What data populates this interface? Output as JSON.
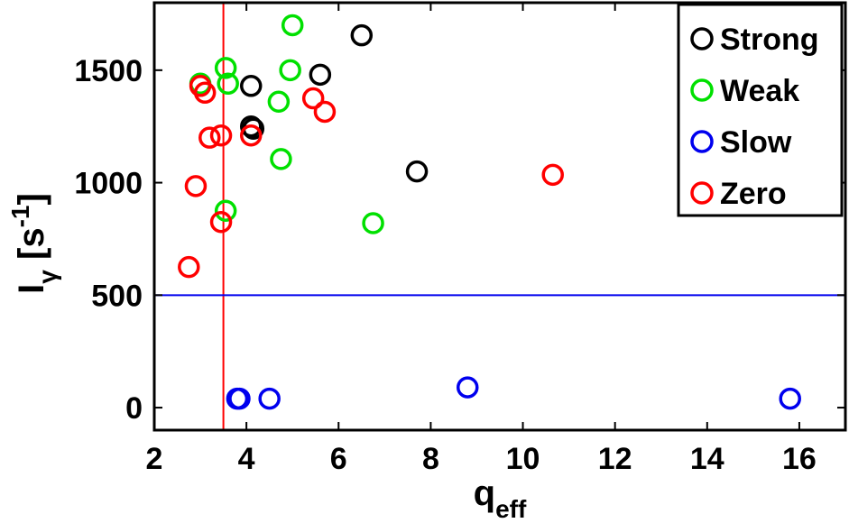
{
  "chart_data": {
    "type": "scatter",
    "xlabel": {
      "main": "q",
      "sub": "eff"
    },
    "ylabel": {
      "main": "I",
      "sub": "γ",
      "unit_open": " [s",
      "unit_sup": "-1",
      "unit_close": "]"
    },
    "xlim": [
      2,
      17
    ],
    "ylim": [
      -100,
      1800
    ],
    "xticks": [
      2,
      4,
      6,
      8,
      10,
      12,
      14,
      16
    ],
    "yticks": [
      0,
      500,
      1000,
      1500
    ],
    "legend_position": "top-right",
    "marker": "open-circle",
    "series": [
      {
        "name": "Strong",
        "color": "#000000",
        "points": [
          [
            4.1,
            1430
          ],
          [
            4.15,
            1240
          ],
          [
            4.1,
            1250
          ],
          [
            5.6,
            1480
          ],
          [
            6.5,
            1655
          ],
          [
            7.7,
            1050
          ]
        ]
      },
      {
        "name": "Weak",
        "color": "#00e000",
        "points": [
          [
            3.0,
            1440
          ],
          [
            3.55,
            1510
          ],
          [
            3.6,
            1440
          ],
          [
            3.55,
            875
          ],
          [
            4.7,
            1360
          ],
          [
            4.75,
            1105
          ],
          [
            4.95,
            1500
          ],
          [
            5.0,
            1700
          ],
          [
            6.75,
            820
          ]
        ]
      },
      {
        "name": "Slow",
        "color": "#0000ee",
        "points": [
          [
            3.8,
            40
          ],
          [
            3.85,
            40
          ],
          [
            4.5,
            40
          ],
          [
            8.8,
            90
          ],
          [
            15.8,
            40
          ]
        ]
      },
      {
        "name": "Zero",
        "color": "#ff0000",
        "points": [
          [
            2.75,
            625
          ],
          [
            2.9,
            985
          ],
          [
            3.0,
            1430
          ],
          [
            3.1,
            1400
          ],
          [
            3.2,
            1200
          ],
          [
            3.45,
            1210
          ],
          [
            3.45,
            825
          ],
          [
            4.1,
            1210
          ],
          [
            5.45,
            1375
          ],
          [
            5.7,
            1315
          ],
          [
            10.65,
            1035
          ]
        ]
      }
    ],
    "reference_lines": [
      {
        "orientation": "vertical",
        "value": 3.5,
        "color": "#ff0000"
      },
      {
        "orientation": "horizontal",
        "value": 500,
        "color": "#0000ee"
      }
    ]
  }
}
